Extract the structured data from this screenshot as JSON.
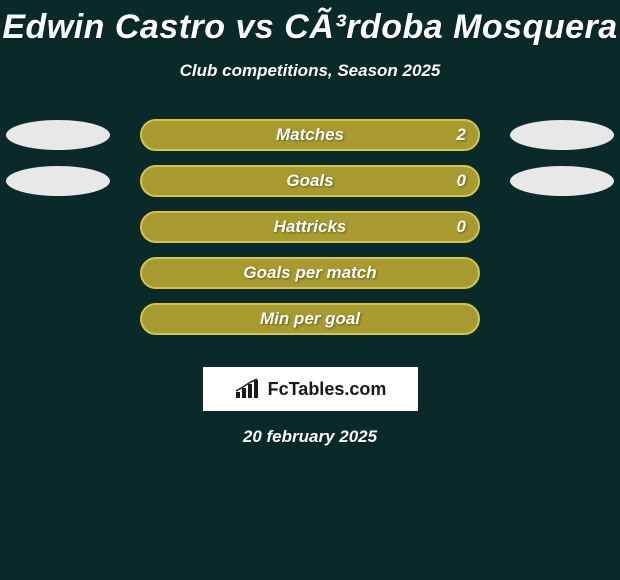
{
  "header": {
    "title": "Edwin Castro vs CÃ³rdoba Mosquera",
    "subtitle": "Club competitions, Season 2025"
  },
  "colors": {
    "background": "#0a2a2a",
    "ellipse_left": "#e8e8e8",
    "ellipse_right": "#e8e8e8",
    "text": "#ffffff"
  },
  "rows": [
    {
      "label": "Matches",
      "value": "2",
      "bar_fill": "#a89a2e",
      "bar_border": "#d4c548",
      "show_value": true,
      "show_left_ellipse": true,
      "show_right_ellipse": true,
      "left_ellipse_color": "#e8e8e8",
      "right_ellipse_color": "#e8e8e8"
    },
    {
      "label": "Goals",
      "value": "0",
      "bar_fill": "#a89a2e",
      "bar_border": "#d4c548",
      "show_value": true,
      "show_left_ellipse": true,
      "show_right_ellipse": true,
      "left_ellipse_color": "#e8e8e8",
      "right_ellipse_color": "#e8e8e8"
    },
    {
      "label": "Hattricks",
      "value": "0",
      "bar_fill": "#a89a2e",
      "bar_border": "#d4c548",
      "show_value": true,
      "show_left_ellipse": false,
      "show_right_ellipse": false
    },
    {
      "label": "Goals per match",
      "value": "",
      "bar_fill": "#a89a2e",
      "bar_border": "#d4c548",
      "show_value": false,
      "show_left_ellipse": false,
      "show_right_ellipse": false
    },
    {
      "label": "Min per goal",
      "value": "",
      "bar_fill": "#a89a2e",
      "bar_border": "#d4c548",
      "show_value": false,
      "show_left_ellipse": false,
      "show_right_ellipse": false
    }
  ],
  "logo": {
    "text": "FcTables.com"
  },
  "date": "20 february 2025"
}
